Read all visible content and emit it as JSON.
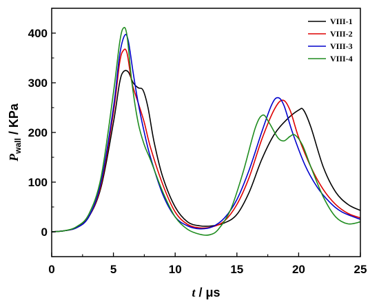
{
  "chart_data": {
    "type": "line",
    "xlabel_var": "t",
    "xlabel_unit": " / μs",
    "ylabel_var": "P",
    "ylabel_sub": "wall",
    "ylabel_unit": " / KPa",
    "xlim": [
      0,
      25
    ],
    "ylim": [
      -50,
      450
    ],
    "xticks": [
      0,
      5,
      10,
      15,
      20,
      25
    ],
    "yticks": [
      0,
      100,
      200,
      300,
      400
    ],
    "grid": false,
    "legend_position": "top-right",
    "series": [
      {
        "name": "VIII-1",
        "color": "#000000",
        "points": [
          [
            0,
            0
          ],
          [
            1,
            2
          ],
          [
            2,
            8
          ],
          [
            3,
            30
          ],
          [
            4,
            90
          ],
          [
            5,
            220
          ],
          [
            5.5,
            300
          ],
          [
            5.8,
            322
          ],
          [
            6.2,
            322
          ],
          [
            6.6,
            300
          ],
          [
            7,
            290
          ],
          [
            7.4,
            285
          ],
          [
            7.8,
            250
          ],
          [
            8.3,
            180
          ],
          [
            9,
            110
          ],
          [
            10,
            50
          ],
          [
            11,
            20
          ],
          [
            12,
            12
          ],
          [
            13,
            12
          ],
          [
            14,
            18
          ],
          [
            15,
            35
          ],
          [
            16,
            80
          ],
          [
            17,
            145
          ],
          [
            18,
            195
          ],
          [
            19,
            225
          ],
          [
            20,
            245
          ],
          [
            20.4,
            245
          ],
          [
            21,
            210
          ],
          [
            22,
            130
          ],
          [
            23,
            80
          ],
          [
            24,
            55
          ],
          [
            25,
            43
          ]
        ]
      },
      {
        "name": "VIII-2",
        "color": "#dd0000",
        "points": [
          [
            0,
            0
          ],
          [
            1,
            2
          ],
          [
            2,
            8
          ],
          [
            3,
            30
          ],
          [
            4,
            95
          ],
          [
            5,
            240
          ],
          [
            5.5,
            340
          ],
          [
            5.8,
            365
          ],
          [
            6.1,
            360
          ],
          [
            6.5,
            300
          ],
          [
            7,
            260
          ],
          [
            7.5,
            220
          ],
          [
            8,
            170
          ],
          [
            9,
            95
          ],
          [
            10,
            40
          ],
          [
            11,
            15
          ],
          [
            12,
            8
          ],
          [
            13,
            10
          ],
          [
            14,
            22
          ],
          [
            15,
            55
          ],
          [
            16,
            110
          ],
          [
            17,
            185
          ],
          [
            18,
            245
          ],
          [
            18.7,
            265
          ],
          [
            19.3,
            245
          ],
          [
            20,
            190
          ],
          [
            21,
            130
          ],
          [
            22,
            85
          ],
          [
            23,
            55
          ],
          [
            24,
            37
          ],
          [
            25,
            28
          ]
        ]
      },
      {
        "name": "VIII-3",
        "color": "#0000cc",
        "points": [
          [
            0,
            0
          ],
          [
            1,
            2
          ],
          [
            2,
            8
          ],
          [
            3,
            30
          ],
          [
            4,
            100
          ],
          [
            5,
            250
          ],
          [
            5.5,
            355
          ],
          [
            5.9,
            395
          ],
          [
            6.2,
            385
          ],
          [
            6.6,
            320
          ],
          [
            7,
            260
          ],
          [
            7.5,
            200
          ],
          [
            8,
            150
          ],
          [
            9,
            75
          ],
          [
            10,
            30
          ],
          [
            11,
            12
          ],
          [
            12,
            6
          ],
          [
            13,
            10
          ],
          [
            14,
            28
          ],
          [
            15,
            65
          ],
          [
            16,
            125
          ],
          [
            17,
            200
          ],
          [
            17.8,
            255
          ],
          [
            18.3,
            270
          ],
          [
            18.8,
            255
          ],
          [
            19.5,
            200
          ],
          [
            20.5,
            135
          ],
          [
            21.5,
            90
          ],
          [
            22.5,
            60
          ],
          [
            23.5,
            40
          ],
          [
            25,
            25
          ]
        ]
      },
      {
        "name": "VIII-4",
        "color": "#1e8c1e",
        "points": [
          [
            0,
            0
          ],
          [
            1,
            2
          ],
          [
            2,
            10
          ],
          [
            3,
            35
          ],
          [
            4,
            110
          ],
          [
            5,
            280
          ],
          [
            5.5,
            380
          ],
          [
            5.8,
            410
          ],
          [
            6.1,
            395
          ],
          [
            6.5,
            300
          ],
          [
            7,
            220
          ],
          [
            7.5,
            175
          ],
          [
            8,
            145
          ],
          [
            9,
            80
          ],
          [
            10,
            30
          ],
          [
            11,
            5
          ],
          [
            12,
            -5
          ],
          [
            12.8,
            -6
          ],
          [
            13.5,
            5
          ],
          [
            14.5,
            45
          ],
          [
            15.5,
            120
          ],
          [
            16.5,
            210
          ],
          [
            17.1,
            235
          ],
          [
            17.6,
            220
          ],
          [
            18.3,
            190
          ],
          [
            18.8,
            183
          ],
          [
            19.3,
            192
          ],
          [
            19.7,
            195
          ],
          [
            20.3,
            175
          ],
          [
            21,
            130
          ],
          [
            22,
            70
          ],
          [
            23,
            30
          ],
          [
            24,
            16
          ],
          [
            25,
            20
          ]
        ]
      }
    ]
  }
}
